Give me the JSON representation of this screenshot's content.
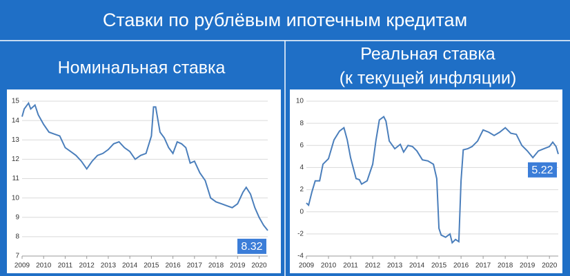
{
  "title": "Ставки по рублёвым ипотечным кредитам",
  "chart_data": [
    {
      "type": "line",
      "title": "Номинальная ставка",
      "color": "#4a7ebb",
      "xlim": [
        2009,
        2020.4
      ],
      "xticks": [
        2009,
        2010,
        2011,
        2012,
        2013,
        2014,
        2015,
        2016,
        2017,
        2018,
        2019,
        2020
      ],
      "ylim": [
        7,
        15
      ],
      "yticks": [
        7,
        8,
        9,
        10,
        11,
        12,
        13,
        14,
        15
      ],
      "grid": true,
      "x": [
        2009,
        2009.1,
        2009.3,
        2009.4,
        2009.6,
        2009.75,
        2010,
        2010.25,
        2010.5,
        2010.75,
        2011,
        2011.25,
        2011.5,
        2011.75,
        2012,
        2012.25,
        2012.5,
        2012.75,
        2013,
        2013.25,
        2013.5,
        2013.75,
        2014,
        2014.25,
        2014.5,
        2014.75,
        2015,
        2015.1,
        2015.2,
        2015.4,
        2015.6,
        2015.8,
        2016,
        2016.2,
        2016.4,
        2016.6,
        2016.8,
        2017,
        2017.25,
        2017.5,
        2017.75,
        2018,
        2018.25,
        2018.5,
        2018.75,
        2019,
        2019.25,
        2019.4,
        2019.6,
        2019.8,
        2020,
        2020.2,
        2020.4
      ],
      "values": [
        14.2,
        14.6,
        14.9,
        14.6,
        14.8,
        14.3,
        13.8,
        13.4,
        13.3,
        13.2,
        12.6,
        12.4,
        12.2,
        11.9,
        11.5,
        11.9,
        12.2,
        12.3,
        12.5,
        12.8,
        12.9,
        12.6,
        12.4,
        12.0,
        12.2,
        12.3,
        13.2,
        14.7,
        14.7,
        13.4,
        13.1,
        12.6,
        12.3,
        12.9,
        12.8,
        12.6,
        11.8,
        11.9,
        11.3,
        10.9,
        10.0,
        9.8,
        9.7,
        9.6,
        9.5,
        9.7,
        10.3,
        10.55,
        10.2,
        9.5,
        9.0,
        8.6,
        8.32
      ]
    },
    {
      "type": "line",
      "title": "Реальная ставка",
      "subtitle": "(к текущей инфляции)",
      "color": "#4a7ebb",
      "xlim": [
        2009,
        2020.4
      ],
      "xticks": [
        2009,
        2010,
        2011,
        2012,
        2013,
        2014,
        2015,
        2016,
        2017,
        2018,
        2019,
        2020
      ],
      "ylim": [
        -4,
        10
      ],
      "yticks": [
        -4,
        -2,
        0,
        2,
        4,
        6,
        8,
        10
      ],
      "grid": true,
      "x": [
        2009,
        2009.1,
        2009.25,
        2009.4,
        2009.6,
        2009.75,
        2010,
        2010.25,
        2010.5,
        2010.7,
        2010.85,
        2011,
        2011.25,
        2011.4,
        2011.5,
        2011.75,
        2012,
        2012.15,
        2012.3,
        2012.5,
        2012.6,
        2012.75,
        2013,
        2013.25,
        2013.4,
        2013.6,
        2013.8,
        2014,
        2014.25,
        2014.5,
        2014.75,
        2014.9,
        2015,
        2015.1,
        2015.3,
        2015.5,
        2015.6,
        2015.75,
        2015.9,
        2016,
        2016.1,
        2016.3,
        2016.5,
        2016.75,
        2017,
        2017.25,
        2017.5,
        2017.75,
        2018,
        2018.25,
        2018.5,
        2018.75,
        2019,
        2019.25,
        2019.5,
        2019.75,
        2020,
        2020.15,
        2020.3,
        2020.4
      ],
      "values": [
        0.8,
        0.6,
        1.8,
        2.8,
        2.8,
        4.3,
        4.8,
        6.5,
        7.3,
        7.6,
        6.5,
        4.9,
        3.0,
        2.9,
        2.5,
        2.8,
        4.3,
        6.5,
        8.3,
        8.6,
        8.2,
        6.4,
        5.7,
        6.1,
        5.4,
        6.0,
        5.9,
        5.5,
        4.7,
        4.6,
        4.3,
        3.0,
        -1.5,
        -2.1,
        -2.3,
        -2.0,
        -2.8,
        -2.5,
        -2.7,
        2.8,
        5.6,
        5.7,
        5.9,
        6.4,
        7.4,
        7.2,
        6.9,
        7.2,
        7.6,
        7.1,
        7.0,
        6.0,
        5.5,
        4.9,
        5.5,
        5.7,
        5.9,
        6.3,
        5.9,
        5.22
      ]
    }
  ]
}
